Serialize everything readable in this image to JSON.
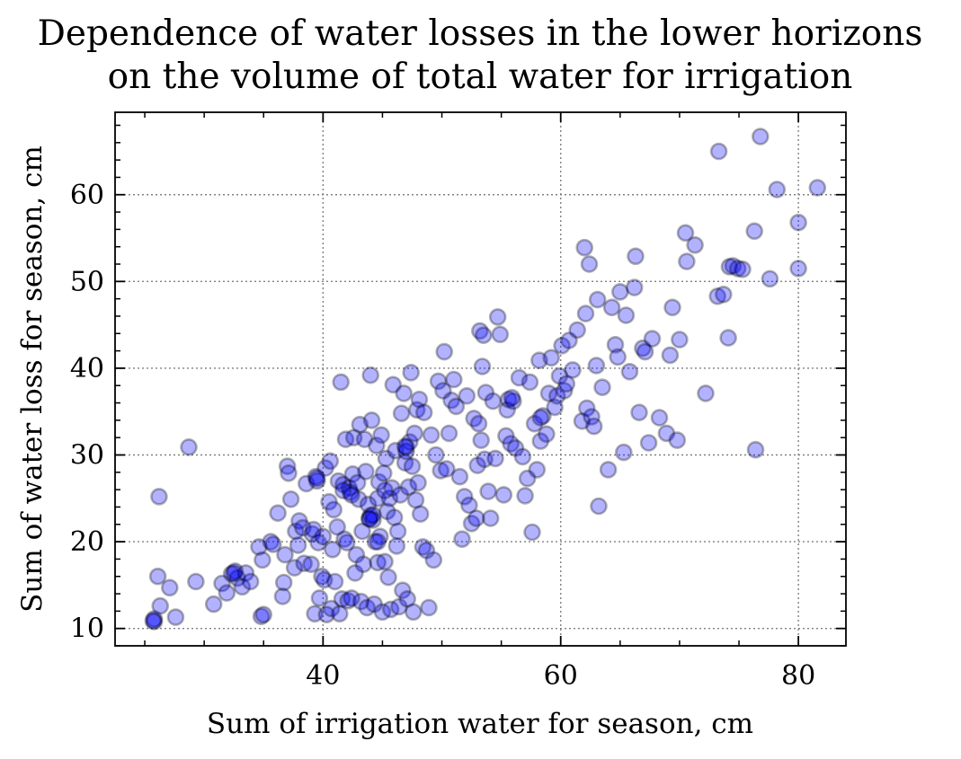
{
  "chart_data": {
    "type": "scatter",
    "title": "Dependence of water losses in the lower horizons on the volume of total water for irrigation",
    "title_lines": [
      "Dependence of water losses in the lower horizons",
      "on the volume of total water for irrigation"
    ],
    "xlabel": "Sum of irrigation water for season, cm",
    "ylabel": "Sum of water loss for season, cm",
    "xlim": [
      22.5,
      84
    ],
    "ylim": [
      8,
      69.5
    ],
    "xticks": [
      40,
      60,
      80
    ],
    "yticks": [
      10,
      20,
      30,
      40,
      50,
      60
    ],
    "grid": true,
    "marker_color": "#0000ff",
    "marker_edge_color": "#000000",
    "points": [
      [
        25.8,
        10.8
      ],
      [
        25.8,
        11.1
      ],
      [
        26.1,
        16.0
      ],
      [
        26.2,
        25.2
      ],
      [
        26.3,
        12.6
      ],
      [
        27.1,
        14.7
      ],
      [
        27.6,
        11.3
      ],
      [
        28.7,
        30.9
      ],
      [
        29.3,
        15.4
      ],
      [
        30.8,
        12.8
      ],
      [
        31.5,
        15.2
      ],
      [
        31.9,
        14.1
      ],
      [
        32.3,
        16.3
      ],
      [
        32.6,
        16.6
      ],
      [
        32.8,
        15.8
      ],
      [
        33.2,
        14.8
      ],
      [
        33.5,
        16.4
      ],
      [
        33.9,
        15.4
      ],
      [
        34.6,
        19.4
      ],
      [
        34.8,
        11.4
      ],
      [
        34.9,
        17.9
      ],
      [
        35.0,
        11.6
      ],
      [
        35.6,
        20.0
      ],
      [
        35.8,
        19.7
      ],
      [
        36.2,
        23.3
      ],
      [
        36.6,
        13.7
      ],
      [
        36.7,
        15.3
      ],
      [
        36.8,
        18.5
      ],
      [
        37.0,
        28.7
      ],
      [
        37.1,
        27.9
      ],
      [
        37.3,
        24.9
      ],
      [
        37.6,
        17.0
      ],
      [
        37.7,
        21.2
      ],
      [
        37.9,
        19.6
      ],
      [
        38.0,
        22.4
      ],
      [
        38.3,
        21.6
      ],
      [
        38.4,
        17.5
      ],
      [
        38.6,
        26.7
      ],
      [
        39.0,
        17.4
      ],
      [
        39.1,
        20.9
      ],
      [
        39.2,
        21.4
      ],
      [
        39.3,
        11.7
      ],
      [
        39.4,
        27.5
      ],
      [
        39.5,
        27.0
      ],
      [
        39.6,
        19.9
      ],
      [
        39.7,
        13.5
      ],
      [
        39.9,
        16.0
      ],
      [
        40.0,
        20.6
      ],
      [
        40.1,
        15.6
      ],
      [
        40.2,
        28.5
      ],
      [
        40.3,
        11.6
      ],
      [
        40.5,
        24.6
      ],
      [
        40.6,
        29.3
      ],
      [
        40.7,
        12.3
      ],
      [
        40.8,
        19.1
      ],
      [
        40.9,
        23.7
      ],
      [
        41.0,
        15.4
      ],
      [
        41.2,
        21.7
      ],
      [
        41.3,
        27.0
      ],
      [
        41.4,
        11.7
      ],
      [
        41.5,
        38.4
      ],
      [
        41.6,
        13.4
      ],
      [
        41.7,
        26.6
      ],
      [
        41.8,
        20.3
      ],
      [
        41.9,
        31.8
      ],
      [
        42.0,
        19.9
      ],
      [
        42.1,
        13.2
      ],
      [
        42.2,
        26.2
      ],
      [
        42.3,
        25.7
      ],
      [
        42.4,
        13.5
      ],
      [
        42.5,
        27.8
      ],
      [
        42.6,
        32.0
      ],
      [
        42.7,
        16.4
      ],
      [
        42.8,
        18.5
      ],
      [
        42.9,
        26.8
      ],
      [
        43.0,
        24.9
      ],
      [
        43.1,
        33.5
      ],
      [
        43.2,
        13.1
      ],
      [
        43.3,
        21.2
      ],
      [
        43.4,
        17.4
      ],
      [
        43.5,
        31.8
      ],
      [
        43.6,
        28.1
      ],
      [
        43.7,
        12.4
      ],
      [
        43.8,
        24.3
      ],
      [
        43.9,
        22.7
      ],
      [
        44.0,
        23.0
      ],
      [
        44.0,
        39.2
      ],
      [
        44.1,
        34.0
      ],
      [
        44.2,
        22.5
      ],
      [
        44.3,
        12.8
      ],
      [
        44.4,
        20.0
      ],
      [
        44.5,
        31.1
      ],
      [
        44.6,
        25.0
      ],
      [
        44.6,
        17.6
      ],
      [
        44.7,
        26.9
      ],
      [
        44.8,
        20.6
      ],
      [
        44.9,
        32.3
      ],
      [
        45.0,
        11.9
      ],
      [
        45.1,
        27.9
      ],
      [
        45.2,
        17.7
      ],
      [
        45.3,
        29.6
      ],
      [
        45.4,
        23.5
      ],
      [
        45.5,
        15.9
      ],
      [
        45.6,
        25.0
      ],
      [
        45.7,
        12.2
      ],
      [
        45.8,
        26.2
      ],
      [
        45.9,
        38.1
      ],
      [
        46.0,
        22.8
      ],
      [
        46.1,
        30.5
      ],
      [
        46.2,
        19.5
      ],
      [
        46.3,
        21.2
      ],
      [
        46.4,
        12.5
      ],
      [
        46.5,
        25.4
      ],
      [
        46.6,
        34.8
      ],
      [
        46.7,
        14.4
      ],
      [
        46.8,
        37.1
      ],
      [
        46.9,
        29.1
      ],
      [
        47.0,
        30.9
      ],
      [
        47.1,
        13.4
      ],
      [
        47.2,
        26.3
      ],
      [
        47.3,
        31.5
      ],
      [
        47.4,
        39.5
      ],
      [
        47.5,
        28.7
      ],
      [
        47.6,
        11.9
      ],
      [
        47.7,
        32.5
      ],
      [
        47.8,
        24.8
      ],
      [
        47.9,
        35.2
      ],
      [
        48.0,
        26.8
      ],
      [
        48.1,
        36.4
      ],
      [
        48.2,
        23.2
      ],
      [
        48.4,
        19.4
      ],
      [
        48.5,
        34.9
      ],
      [
        48.7,
        19.0
      ],
      [
        48.9,
        12.4
      ],
      [
        49.1,
        32.3
      ],
      [
        49.3,
        17.9
      ],
      [
        49.5,
        30.0
      ],
      [
        49.7,
        38.5
      ],
      [
        49.9,
        28.2
      ],
      [
        50.1,
        37.4
      ],
      [
        50.2,
        41.9
      ],
      [
        50.4,
        28.4
      ],
      [
        50.6,
        32.5
      ],
      [
        50.8,
        36.3
      ],
      [
        51.0,
        38.7
      ],
      [
        51.2,
        35.6
      ],
      [
        51.5,
        27.5
      ],
      [
        51.7,
        20.3
      ],
      [
        51.9,
        25.2
      ],
      [
        52.1,
        36.8
      ],
      [
        52.3,
        24.2
      ],
      [
        52.5,
        22.1
      ],
      [
        52.7,
        34.2
      ],
      [
        52.9,
        22.7
      ],
      [
        53.0,
        28.8
      ],
      [
        53.1,
        33.6
      ],
      [
        53.2,
        44.3
      ],
      [
        53.3,
        31.7
      ],
      [
        53.4,
        40.2
      ],
      [
        53.5,
        43.8
      ],
      [
        53.6,
        29.5
      ],
      [
        53.7,
        37.2
      ],
      [
        53.9,
        25.8
      ],
      [
        54.1,
        22.7
      ],
      [
        54.3,
        36.2
      ],
      [
        54.5,
        29.6
      ],
      [
        54.7,
        45.9
      ],
      [
        54.9,
        43.9
      ],
      [
        55.2,
        25.4
      ],
      [
        55.4,
        32.2
      ],
      [
        55.5,
        35.2
      ],
      [
        55.6,
        36.4
      ],
      [
        55.8,
        31.3
      ],
      [
        56.0,
        36.2
      ],
      [
        56.2,
        30.8
      ],
      [
        56.5,
        38.9
      ],
      [
        56.8,
        29.8
      ],
      [
        57.0,
        25.3
      ],
      [
        57.2,
        27.3
      ],
      [
        57.4,
        38.4
      ],
      [
        57.6,
        21.1
      ],
      [
        57.8,
        33.6
      ],
      [
        58.0,
        28.3
      ],
      [
        58.2,
        40.9
      ],
      [
        58.3,
        31.6
      ],
      [
        58.5,
        34.5
      ],
      [
        58.8,
        32.4
      ],
      [
        59.0,
        37.1
      ],
      [
        59.2,
        41.2
      ],
      [
        59.5,
        35.5
      ],
      [
        59.7,
        36.8
      ],
      [
        59.9,
        39.1
      ],
      [
        60.1,
        42.6
      ],
      [
        60.3,
        37.4
      ],
      [
        60.5,
        38.2
      ],
      [
        60.7,
        43.2
      ],
      [
        61.0,
        39.8
      ],
      [
        61.4,
        44.4
      ],
      [
        61.8,
        33.9
      ],
      [
        62.0,
        53.9
      ],
      [
        62.1,
        46.3
      ],
      [
        62.2,
        35.4
      ],
      [
        62.4,
        52.0
      ],
      [
        62.6,
        34.4
      ],
      [
        62.8,
        33.3
      ],
      [
        63.0,
        40.3
      ],
      [
        63.1,
        47.9
      ],
      [
        63.2,
        24.1
      ],
      [
        63.5,
        37.8
      ],
      [
        64.0,
        28.3
      ],
      [
        64.3,
        47.0
      ],
      [
        64.6,
        42.7
      ],
      [
        64.8,
        41.3
      ],
      [
        65.0,
        48.8
      ],
      [
        65.3,
        30.3
      ],
      [
        65.5,
        46.1
      ],
      [
        65.8,
        39.6
      ],
      [
        66.2,
        49.3
      ],
      [
        66.3,
        52.9
      ],
      [
        66.6,
        34.9
      ],
      [
        66.9,
        42.3
      ],
      [
        67.1,
        41.9
      ],
      [
        67.4,
        31.4
      ],
      [
        67.7,
        43.4
      ],
      [
        68.3,
        34.3
      ],
      [
        68.9,
        32.5
      ],
      [
        69.2,
        41.5
      ],
      [
        69.4,
        47.0
      ],
      [
        69.8,
        31.7
      ],
      [
        70.0,
        43.3
      ],
      [
        70.5,
        55.6
      ],
      [
        70.6,
        52.3
      ],
      [
        71.3,
        54.2
      ],
      [
        72.2,
        37.1
      ],
      [
        73.2,
        48.3
      ],
      [
        73.3,
        65.0
      ],
      [
        73.7,
        48.5
      ],
      [
        74.1,
        43.5
      ],
      [
        74.2,
        51.7
      ],
      [
        74.5,
        51.8
      ],
      [
        74.9,
        51.5
      ],
      [
        75.3,
        51.4
      ],
      [
        76.3,
        55.8
      ],
      [
        76.4,
        30.6
      ],
      [
        76.8,
        66.7
      ],
      [
        77.6,
        50.3
      ],
      [
        78.2,
        60.6
      ],
      [
        80.0,
        56.8
      ],
      [
        80.0,
        51.5
      ],
      [
        81.6,
        60.8
      ],
      [
        44.2,
        23.1
      ],
      [
        43.9,
        22.6
      ],
      [
        47.0,
        30.4
      ],
      [
        55.9,
        36.6
      ],
      [
        58.3,
        34.3
      ],
      [
        32.5,
        16.4
      ],
      [
        39.5,
        27.3
      ],
      [
        41.7,
        25.9
      ],
      [
        42.4,
        25.4
      ],
      [
        45.2,
        25.9
      ],
      [
        25.7,
        10.9
      ],
      [
        44.6,
        20.0
      ],
      [
        46.9,
        31.0
      ]
    ]
  }
}
